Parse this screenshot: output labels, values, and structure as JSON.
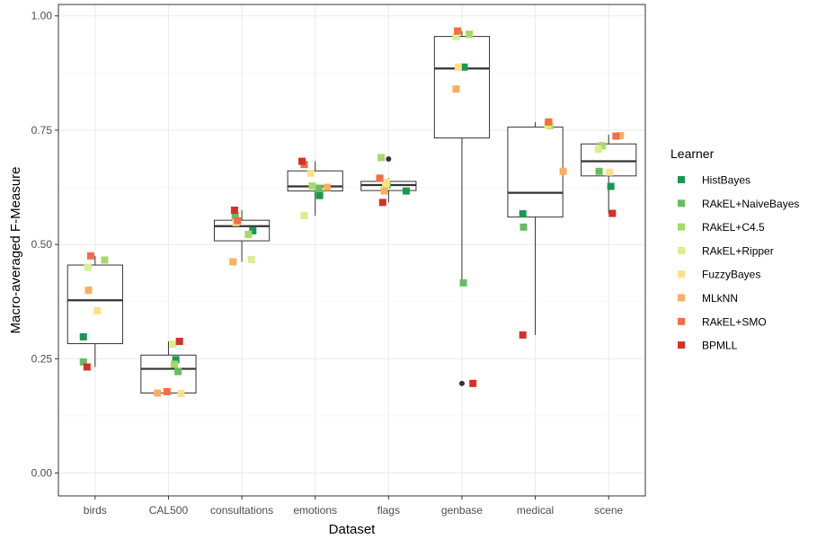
{
  "chart_data": {
    "type": "box-jitter",
    "xlabel": "Dataset",
    "ylabel": "Macro-averaged F-Measure",
    "ylim": [
      -0.05,
      1.025
    ],
    "yticks": [
      0.0,
      0.25,
      0.5,
      0.75,
      1.0
    ],
    "ytick_labels": [
      "0.00",
      "0.25",
      "0.50",
      "0.75",
      "1.00"
    ],
    "grid": true,
    "legend": {
      "title": "Learner",
      "placement": "right"
    },
    "categories": [
      "birds",
      "CAL500",
      "consultations",
      "emotions",
      "flags",
      "genbase",
      "medical",
      "scene"
    ],
    "learners": [
      {
        "name": "HistBayes",
        "color": "#1a9850"
      },
      {
        "name": "RAkEL+NaiveBayes",
        "color": "#66bd63"
      },
      {
        "name": "RAkEL+C4.5",
        "color": "#a6d96a"
      },
      {
        "name": "RAkEL+Ripper",
        "color": "#d9ef8b"
      },
      {
        "name": "FuzzyBayes",
        "color": "#fee08b"
      },
      {
        "name": "MLkNN",
        "color": "#fdae61"
      },
      {
        "name": "RAkEL+SMO",
        "color": "#f46d43"
      },
      {
        "name": "BPMLL",
        "color": "#d73027"
      }
    ],
    "boxes": [
      {
        "category": "birds",
        "whisker_low": 0.232,
        "q1": 0.283,
        "median": 0.378,
        "q3": 0.455,
        "whisker_high": 0.475,
        "outliers": []
      },
      {
        "category": "CAL500",
        "whisker_low": 0.174,
        "q1": 0.175,
        "median": 0.228,
        "q3": 0.258,
        "whisker_high": 0.288,
        "outliers": []
      },
      {
        "category": "consultations",
        "whisker_low": 0.462,
        "q1": 0.508,
        "median": 0.54,
        "q3": 0.553,
        "whisker_high": 0.575,
        "outliers": []
      },
      {
        "category": "emotions",
        "whisker_low": 0.563,
        "q1": 0.617,
        "median": 0.627,
        "q3": 0.661,
        "whisker_high": 0.682,
        "outliers": []
      },
      {
        "category": "flags",
        "whisker_low": 0.592,
        "q1": 0.618,
        "median": 0.63,
        "q3": 0.638,
        "whisker_high": 0.645,
        "outliers": [
          0.687
        ]
      },
      {
        "category": "genbase",
        "whisker_low": 0.416,
        "q1": 0.733,
        "median": 0.885,
        "q3": 0.955,
        "whisker_high": 0.967,
        "outliers": [
          0.196
        ]
      },
      {
        "category": "medical",
        "whisker_low": 0.302,
        "q1": 0.56,
        "median": 0.613,
        "q3": 0.757,
        "whisker_high": 0.768,
        "outliers": []
      },
      {
        "category": "scene",
        "whisker_low": 0.568,
        "q1": 0.65,
        "median": 0.682,
        "q3": 0.72,
        "whisker_high": 0.74,
        "outliers": []
      }
    ],
    "points": [
      {
        "category": "birds",
        "values": [
          0.298,
          0.243,
          0.466,
          0.45,
          0.355,
          0.4,
          0.475,
          0.232
        ],
        "jitter": [
          -0.16,
          -0.16,
          0.13,
          -0.1,
          0.03,
          -0.09,
          -0.06,
          -0.11
        ]
      },
      {
        "category": "CAL500",
        "values": [
          0.248,
          0.222,
          0.238,
          0.282,
          0.174,
          0.175,
          0.178,
          0.288
        ],
        "jitter": [
          0.1,
          0.13,
          0.08,
          0.06,
          0.17,
          -0.15,
          -0.02,
          0.15
        ]
      },
      {
        "category": "consultations",
        "values": [
          0.53,
          0.562,
          0.522,
          0.467,
          0.548,
          0.462,
          0.552,
          0.575
        ],
        "jitter": [
          0.15,
          -0.09,
          0.09,
          0.13,
          -0.08,
          -0.12,
          -0.06,
          -0.1
        ]
      },
      {
        "category": "emotions",
        "values": [
          0.607,
          0.623,
          0.628,
          0.563,
          0.656,
          0.625,
          0.675,
          0.682
        ],
        "jitter": [
          0.06,
          0.05,
          -0.04,
          -0.15,
          -0.06,
          0.16,
          -0.15,
          -0.18
        ]
      },
      {
        "category": "flags",
        "values": [
          0.617,
          0.63,
          0.69,
          0.628,
          0.636,
          0.617,
          0.645,
          0.592
        ],
        "jitter": [
          0.24,
          -0.02,
          -0.1,
          -0.04,
          -0.03,
          -0.06,
          -0.12,
          -0.08
        ]
      },
      {
        "category": "genbase",
        "values": [
          0.888,
          0.416,
          0.96,
          0.955,
          0.888,
          0.84,
          0.967,
          0.196
        ],
        "jitter": [
          0.03,
          0.02,
          0.1,
          -0.08,
          -0.05,
          -0.08,
          -0.06,
          0.15
        ]
      },
      {
        "category": "medical",
        "values": [
          0.567,
          0.538,
          0.76,
          0.762,
          0.768,
          0.66,
          0.768,
          0.302
        ],
        "jitter": [
          -0.17,
          -0.16,
          0.2,
          0.17,
          0.19,
          0.38,
          0.18,
          -0.17
        ]
      },
      {
        "category": "scene",
        "values": [
          0.627,
          0.66,
          0.716,
          0.708,
          0.658,
          0.738,
          0.737,
          0.568
        ],
        "jitter": [
          0.03,
          -0.13,
          -0.09,
          -0.14,
          0.01,
          0.16,
          0.1,
          0.05
        ]
      }
    ]
  }
}
